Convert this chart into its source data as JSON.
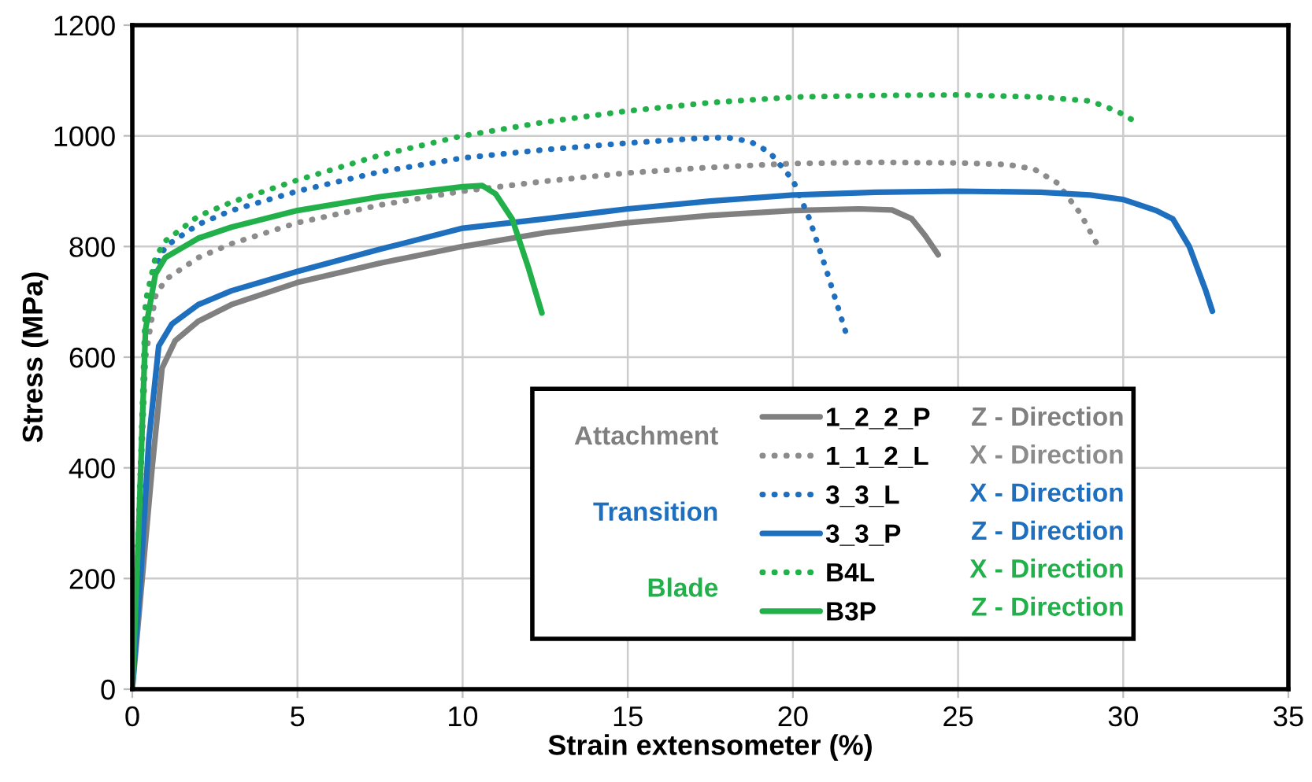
{
  "chart_data": {
    "type": "line",
    "xlabel": "Strain extensometer (%)",
    "ylabel": "Stress (MPa)",
    "xlim": [
      0,
      35
    ],
    "xticks": [
      0,
      5,
      10,
      15,
      20,
      25,
      30,
      35
    ],
    "ylim": [
      0,
      1200
    ],
    "yticks": [
      0,
      200,
      400,
      600,
      800,
      1000,
      1200
    ],
    "grid": true,
    "legend": "bottom right",
    "marker": "none",
    "annotations": [
      "Attachment",
      "Transition",
      "Blade",
      "Z - Direction",
      "X - Direction",
      "X - Direction",
      "Z - Direction",
      "X - Direction",
      "Z - Direction"
    ],
    "series": [
      {
        "name": "1_2_2_P",
        "color": "#808080",
        "line_style": "solid",
        "x": [
          0,
          0.3,
          0.6,
          0.9,
          1.3,
          2,
          3,
          5,
          7.5,
          10,
          12.5,
          15,
          17.5,
          20,
          22,
          23,
          23.6,
          24,
          24.4
        ],
        "values": [
          0,
          200,
          400,
          580,
          630,
          665,
          695,
          735,
          770,
          800,
          825,
          843,
          856,
          865,
          868,
          866,
          850,
          820,
          785
        ]
      },
      {
        "name": "1_1_2_L",
        "color": "#8c8c8c",
        "line_style": "dotted",
        "x": [
          0,
          0.2,
          0.4,
          0.7,
          1,
          2,
          3,
          5,
          7.5,
          10,
          12.5,
          15,
          17.5,
          20,
          22.5,
          25,
          26.5,
          27.3,
          28,
          28.7,
          29.2
        ],
        "values": [
          0,
          300,
          600,
          710,
          740,
          780,
          805,
          843,
          875,
          900,
          918,
          933,
          943,
          950,
          952,
          951,
          948,
          940,
          915,
          860,
          805
        ]
      },
      {
        "name": "3_3_L",
        "color": "#1f6fbf",
        "line_style": "dotted",
        "x": [
          0,
          0.2,
          0.4,
          0.7,
          1,
          2,
          3,
          5,
          7.5,
          10,
          12.5,
          15,
          17,
          18,
          18.7,
          19.3,
          20,
          20.5,
          21,
          21.6
        ],
        "values": [
          0,
          300,
          650,
          760,
          800,
          840,
          865,
          900,
          935,
          960,
          975,
          987,
          995,
          997,
          990,
          970,
          920,
          850,
          760,
          645
        ]
      },
      {
        "name": "3_3_P",
        "color": "#1f6fbf",
        "line_style": "solid",
        "x": [
          0,
          0.25,
          0.5,
          0.8,
          1.2,
          2,
          3,
          5,
          7.5,
          10,
          12.5,
          15,
          17.5,
          20,
          22.5,
          25,
          27.5,
          29,
          30,
          31,
          31.5,
          32,
          32.5,
          32.7
        ],
        "values": [
          0,
          200,
          450,
          620,
          660,
          695,
          720,
          755,
          795,
          833,
          850,
          868,
          882,
          893,
          898,
          900,
          898,
          893,
          885,
          865,
          850,
          800,
          720,
          683
        ]
      },
      {
        "name": "B4L",
        "color": "#22b04b",
        "line_style": "dotted",
        "x": [
          0,
          0.2,
          0.4,
          0.7,
          1,
          2,
          3,
          5,
          7.5,
          10,
          12.5,
          15,
          17.5,
          20,
          22.5,
          25,
          27.5,
          29,
          29.8,
          30.3
        ],
        "values": [
          0,
          300,
          700,
          780,
          810,
          855,
          880,
          920,
          965,
          1000,
          1025,
          1045,
          1060,
          1070,
          1073,
          1074,
          1070,
          1063,
          1045,
          1028
        ]
      },
      {
        "name": "B3P",
        "color": "#22b04b",
        "line_style": "solid",
        "x": [
          0,
          0.2,
          0.4,
          0.7,
          1,
          2,
          3,
          5,
          7.5,
          10,
          10.6,
          11,
          11.5,
          12,
          12.4
        ],
        "values": [
          0,
          300,
          650,
          750,
          780,
          815,
          835,
          865,
          890,
          908,
          910,
          895,
          850,
          760,
          680
        ]
      }
    ]
  }
}
